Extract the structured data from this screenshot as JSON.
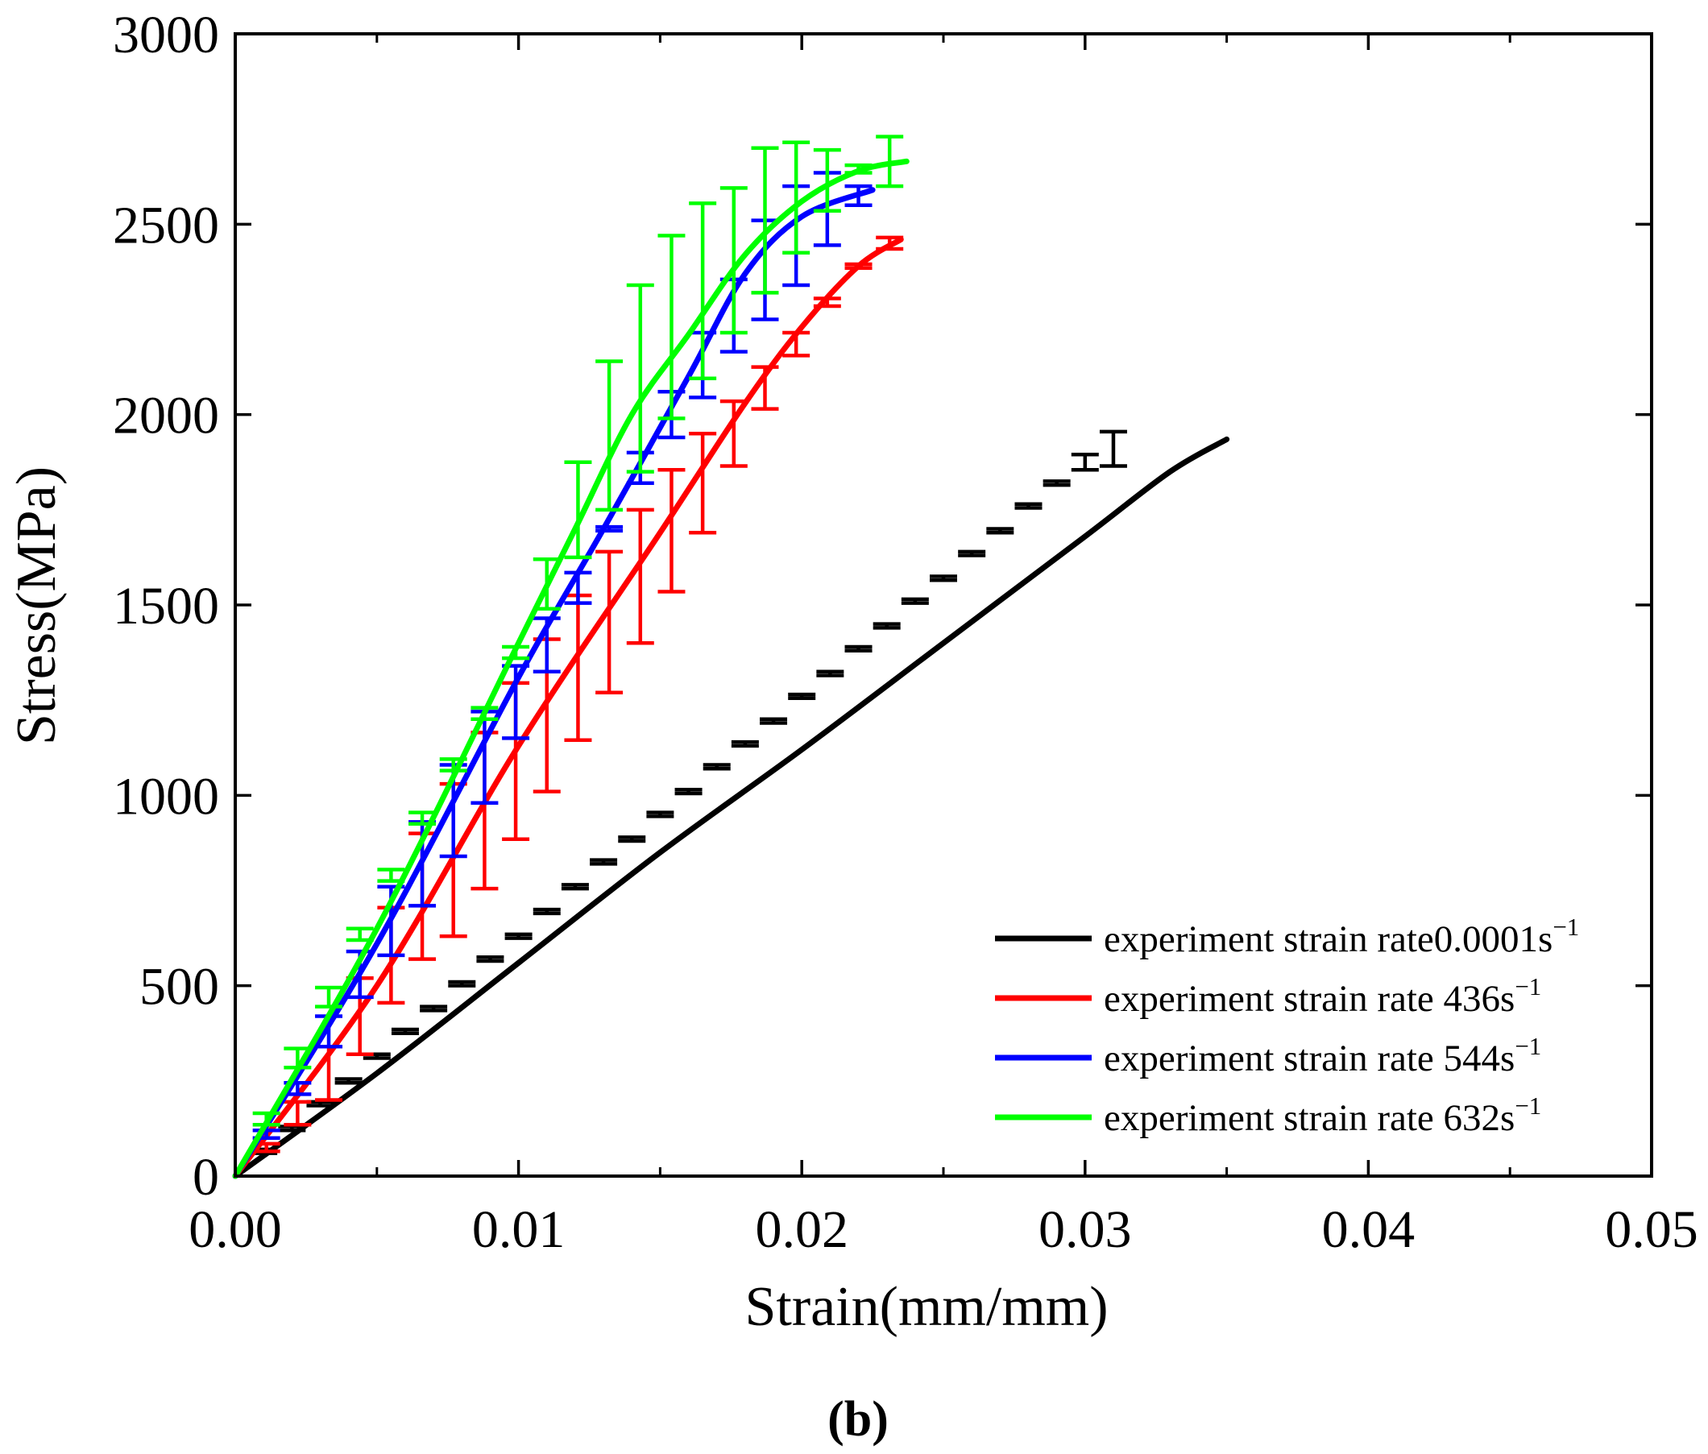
{
  "caption": "(b)",
  "chart_data": {
    "type": "line",
    "title": "",
    "xlabel": "Strain(mm/mm)",
    "ylabel": "Stress(MPa)",
    "xlim": [
      0,
      0.05
    ],
    "ylim": [
      0,
      3000
    ],
    "xticks": [
      "0.00",
      "0.01",
      "0.02",
      "0.03",
      "0.04",
      "0.05"
    ],
    "yticks": [
      "0",
      "500",
      "1000",
      "1500",
      "2000",
      "2500",
      "3000"
    ],
    "grid": false,
    "legend_position": "bottom-right",
    "series": [
      {
        "name": "experiment strain rate0.0001s",
        "name_sup": "−1",
        "color": "#000000",
        "curve": [
          [
            0,
            0
          ],
          [
            0.005,
            270
          ],
          [
            0.01,
            560
          ],
          [
            0.015,
            850
          ],
          [
            0.02,
            1120
          ],
          [
            0.025,
            1400
          ],
          [
            0.03,
            1680
          ],
          [
            0.033,
            1850
          ],
          [
            0.035,
            1935
          ]
        ],
        "points": [
          [
            0.001,
            65
          ],
          [
            0.002,
            125
          ],
          [
            0.003,
            190
          ],
          [
            0.004,
            250
          ],
          [
            0.005,
            315
          ],
          [
            0.006,
            380
          ],
          [
            0.007,
            440
          ],
          [
            0.008,
            505
          ],
          [
            0.009,
            570
          ],
          [
            0.01,
            630
          ],
          [
            0.011,
            695
          ],
          [
            0.012,
            760
          ],
          [
            0.013,
            825
          ],
          [
            0.014,
            885
          ],
          [
            0.015,
            950
          ],
          [
            0.016,
            1010
          ],
          [
            0.017,
            1075
          ],
          [
            0.018,
            1135
          ],
          [
            0.019,
            1195
          ],
          [
            0.02,
            1260
          ],
          [
            0.021,
            1320
          ],
          [
            0.022,
            1385
          ],
          [
            0.023,
            1445
          ],
          [
            0.024,
            1510
          ],
          [
            0.025,
            1570
          ],
          [
            0.026,
            1635
          ],
          [
            0.027,
            1695
          ],
          [
            0.028,
            1760
          ],
          [
            0.029,
            1820
          ],
          [
            0.03,
            1875
          ],
          [
            0.031,
            1910
          ]
        ],
        "errors": [
          5,
          5,
          5,
          5,
          5,
          5,
          5,
          5,
          5,
          5,
          5,
          5,
          5,
          5,
          5,
          5,
          5,
          5,
          5,
          5,
          5,
          5,
          5,
          5,
          5,
          5,
          5,
          5,
          5,
          20,
          45
        ]
      },
      {
        "name": "experiment strain rate 436s",
        "name_sup": "−1",
        "color": "#ff0000",
        "curve": [
          [
            0,
            0
          ],
          [
            0.005,
            500
          ],
          [
            0.01,
            1130
          ],
          [
            0.015,
            1690
          ],
          [
            0.018,
            2030
          ],
          [
            0.02,
            2230
          ],
          [
            0.022,
            2390
          ],
          [
            0.0235,
            2460
          ]
        ],
        "points": [
          [
            0.0011,
            75
          ],
          [
            0.0022,
            165
          ],
          [
            0.0033,
            270
          ],
          [
            0.0044,
            420
          ],
          [
            0.0055,
            580
          ],
          [
            0.0066,
            735
          ],
          [
            0.0077,
            830
          ],
          [
            0.0088,
            960
          ],
          [
            0.0099,
            1090
          ],
          [
            0.011,
            1210
          ],
          [
            0.0121,
            1335
          ],
          [
            0.0132,
            1455
          ],
          [
            0.0143,
            1575
          ],
          [
            0.0154,
            1695
          ],
          [
            0.0165,
            1820
          ],
          [
            0.0176,
            1950
          ],
          [
            0.0187,
            2070
          ],
          [
            0.0198,
            2185
          ],
          [
            0.0209,
            2295
          ],
          [
            0.022,
            2390
          ],
          [
            0.0231,
            2450
          ]
        ],
        "errors": [
          10,
          30,
          70,
          100,
          125,
          165,
          200,
          205,
          205,
          200,
          190,
          185,
          175,
          160,
          130,
          85,
          55,
          30,
          10,
          5,
          15
        ]
      },
      {
        "name": "experiment strain rate 544s",
        "name_sup": "−1",
        "color": "#0000ff",
        "curve": [
          [
            0,
            0
          ],
          [
            0.005,
            610
          ],
          [
            0.01,
            1310
          ],
          [
            0.013,
            1700
          ],
          [
            0.016,
            2100
          ],
          [
            0.018,
            2370
          ],
          [
            0.02,
            2520
          ],
          [
            0.0225,
            2590
          ]
        ],
        "points": [
          [
            0.0011,
            110
          ],
          [
            0.0022,
            230
          ],
          [
            0.0033,
            380
          ],
          [
            0.0044,
            530
          ],
          [
            0.0055,
            670
          ],
          [
            0.0066,
            820
          ],
          [
            0.0077,
            960
          ],
          [
            0.0088,
            1100
          ],
          [
            0.0099,
            1245
          ],
          [
            0.011,
            1395
          ],
          [
            0.0121,
            1545
          ],
          [
            0.0132,
            1700
          ],
          [
            0.0143,
            1860
          ],
          [
            0.0154,
            2000
          ],
          [
            0.0165,
            2130
          ],
          [
            0.0176,
            2260
          ],
          [
            0.0187,
            2380
          ],
          [
            0.0198,
            2470
          ],
          [
            0.0209,
            2540
          ],
          [
            0.022,
            2575
          ]
        ],
        "errors": [
          10,
          15,
          40,
          60,
          90,
          110,
          120,
          120,
          95,
          70,
          40,
          5,
          40,
          60,
          85,
          95,
          130,
          130,
          95,
          25
        ]
      },
      {
        "name": "experiment strain rate 632s",
        "name_sup": "−1",
        "color": "#00ff00",
        "curve": [
          [
            0,
            0
          ],
          [
            0.005,
            650
          ],
          [
            0.01,
            1400
          ],
          [
            0.012,
            1700
          ],
          [
            0.014,
            2000
          ],
          [
            0.016,
            2210
          ],
          [
            0.018,
            2420
          ],
          [
            0.02,
            2560
          ],
          [
            0.022,
            2640
          ],
          [
            0.0237,
            2665
          ]
        ],
        "points": [
          [
            0.0011,
            150
          ],
          [
            0.0022,
            310
          ],
          [
            0.0033,
            470
          ],
          [
            0.0044,
            635
          ],
          [
            0.0055,
            790
          ],
          [
            0.0066,
            940
          ],
          [
            0.0077,
            1080
          ],
          [
            0.0088,
            1215
          ],
          [
            0.0099,
            1375
          ],
          [
            0.011,
            1555
          ],
          [
            0.0121,
            1750
          ],
          [
            0.0132,
            1945
          ],
          [
            0.0143,
            2095
          ],
          [
            0.0154,
            2230
          ],
          [
            0.0165,
            2325
          ],
          [
            0.0176,
            2405
          ],
          [
            0.0187,
            2510
          ],
          [
            0.0198,
            2570
          ],
          [
            0.0209,
            2615
          ],
          [
            0.022,
            2645
          ],
          [
            0.0231,
            2665
          ]
        ],
        "errors": [
          15,
          25,
          25,
          15,
          15,
          15,
          15,
          15,
          15,
          65,
          125,
          195,
          245,
          240,
          230,
          190,
          190,
          145,
          80,
          10,
          65
        ]
      }
    ]
  }
}
